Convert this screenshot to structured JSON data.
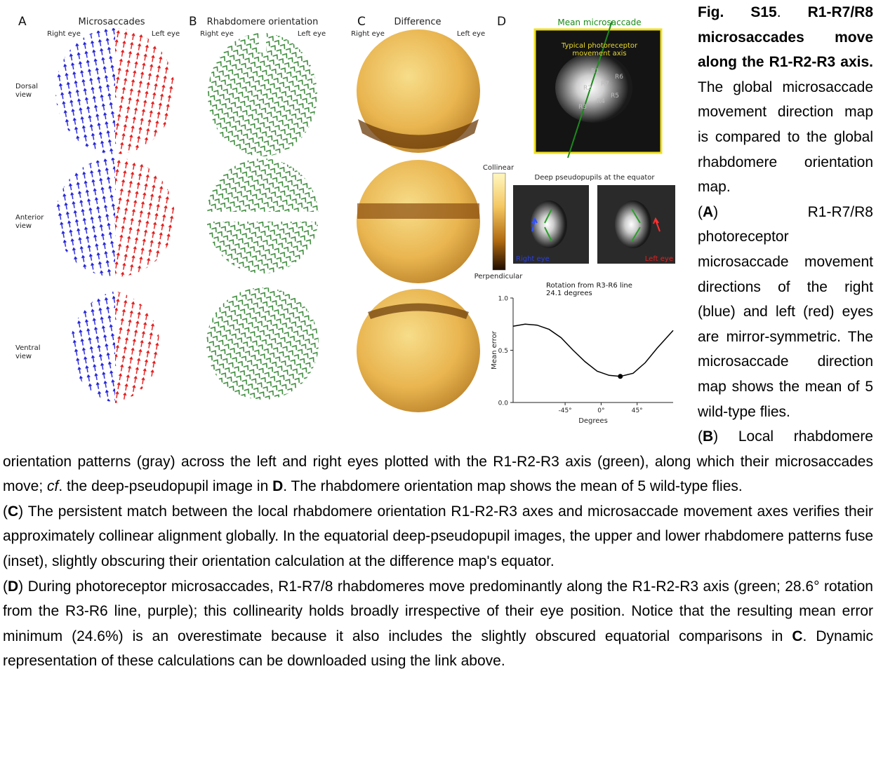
{
  "panels": [
    {
      "letter": "A",
      "title": "Microsaccades",
      "right_eye": "Right eye",
      "left_eye": "Left eye"
    },
    {
      "letter": "B",
      "title": "Rhabdomere orientation",
      "right_eye": "Right eye",
      "left_eye": "Left eye"
    },
    {
      "letter": "C",
      "title": "Difference",
      "right_eye": "Right eye",
      "left_eye": "Left eye"
    },
    {
      "letter": "D"
    }
  ],
  "row_labels": [
    [
      "Dorsal",
      "view"
    ],
    [
      "Anterior",
      "view"
    ],
    [
      "Ventral",
      "view"
    ]
  ],
  "inset_top": {
    "title": "Mean microsaccade",
    "annotation": [
      "Typical photoreceptor",
      "movement axis"
    ],
    "labels": [
      "R1",
      "R6",
      "R2",
      "R7",
      "R5",
      "R4",
      "R3"
    ]
  },
  "colorbar": {
    "top": "Collinear",
    "bottom": "Perpendicular"
  },
  "inset_mid": {
    "title": "Deep pseudopupils at the equator",
    "right": "Right eye",
    "left": "Left eye"
  },
  "chart_data": {
    "type": "line",
    "title": [
      "Rotation from R3-R6 line",
      "24.1 degrees"
    ],
    "x_label": "Degrees",
    "y_label": "Mean error",
    "x": [
      -110,
      -95,
      -80,
      -65,
      -50,
      -35,
      -20,
      -5,
      10,
      24,
      40,
      55,
      70,
      90
    ],
    "values": [
      0.73,
      0.75,
      0.74,
      0.7,
      0.62,
      0.5,
      0.39,
      0.3,
      0.26,
      0.25,
      0.28,
      0.38,
      0.52,
      0.69
    ],
    "color": "#000000",
    "minimum": {
      "x": 24,
      "value": 0.25
    },
    "xlim": [
      -110,
      90
    ],
    "ylim": [
      0,
      1
    ],
    "xticks": [
      {
        "value": -45,
        "label": "-45°"
      },
      {
        "value": 0,
        "label": "0°"
      },
      {
        "value": 45,
        "label": "45°"
      }
    ],
    "yticks": [
      {
        "value": 0,
        "label": "0.0"
      },
      {
        "value": 0.5,
        "label": "0.5"
      },
      {
        "value": 1,
        "label": "1.0"
      }
    ]
  },
  "caption": [
    [
      {
        "text": "Fig. S15",
        "bold": true
      },
      {
        "text": ". "
      },
      {
        "text": "R1-R7/R8 microsaccades move along the R1-R2-R3 axis.",
        "bold": true
      },
      {
        "text": " The global microsaccade movement direction map is compared to the global rhabdomere orientation map."
      }
    ],
    [
      {
        "text": "("
      },
      {
        "text": "A",
        "bold": true
      },
      {
        "text": ") R1-R7/R8 photoreceptor microsaccade movement directions of the right (blue) and left (red) eyes are mirror-symmetric. The microsaccade direction map shows the mean of 5 wild-type flies."
      }
    ],
    [
      {
        "text": "("
      },
      {
        "text": "B",
        "bold": true
      },
      {
        "text": ") Local rhabdomere orientation patterns (gray) across the left and right eyes plotted with the R1-R2-R3 axis (green), along which their microsaccades move; "
      },
      {
        "text": "cf",
        "italic": true
      },
      {
        "text": ". the deep-pseudopupil image in "
      },
      {
        "text": "D",
        "bold": true
      },
      {
        "text": ". The rhabdomere orientation map shows the mean of 5 wild-type flies."
      }
    ],
    [
      {
        "text": "("
      },
      {
        "text": "C",
        "bold": true
      },
      {
        "text": ") The persistent match between the local rhabdomere orientation R1-R2-R3 axes and microsaccade movement axes verifies their approximately collinear alignment globally. In the equatorial deep-pseudopupil images, the upper and lower rhabdomere patterns fuse (inset), slightly obscuring their orientation calculation at the difference map's equator."
      }
    ],
    [
      {
        "text": "("
      },
      {
        "text": "D",
        "bold": true
      },
      {
        "text": ") During photoreceptor microsaccades, R1-R7/8 rhabdomeres move predominantly along the R1-R2-R3 axis (green; 28.6° rotation from the R3-R6 line, purple); this collinearity holds broadly irrespective of their eye position. Notice that the resulting mean error minimum (24.6%) is an overestimate because it also includes the slightly obscured equatorial comparisons in "
      },
      {
        "text": "C",
        "bold": true
      },
      {
        "text": ". Dynamic representation of these calculations can be downloaded using the link above."
      }
    ]
  ]
}
